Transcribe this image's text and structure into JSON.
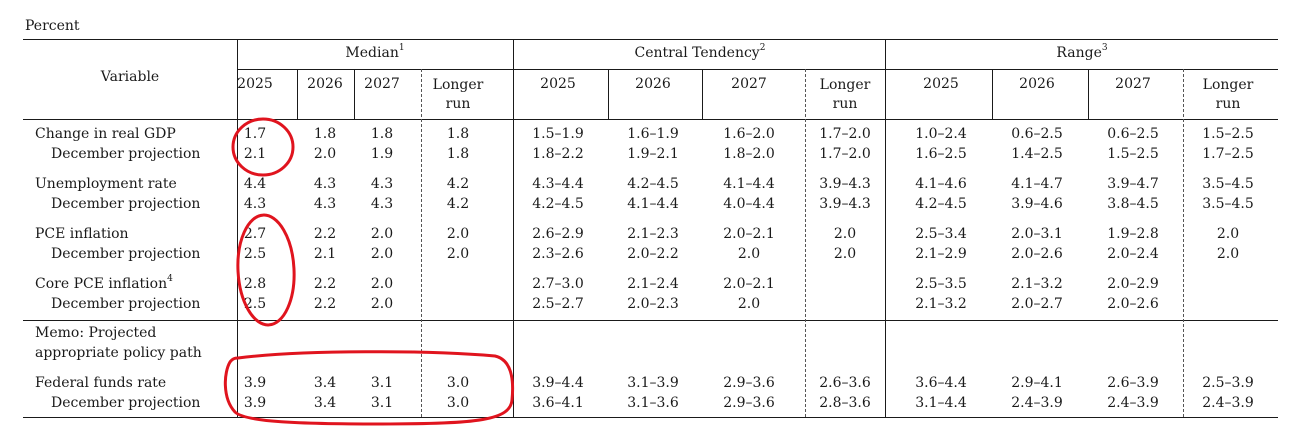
{
  "unit_label": "Percent",
  "variable_header": "Variable",
  "groups": [
    {
      "label": "Median",
      "note": "1"
    },
    {
      "label": "Central Tendency",
      "note": "2"
    },
    {
      "label": "Range",
      "note": "3"
    }
  ],
  "year_headers": [
    "2025",
    "2026",
    "2027",
    "Longer run"
  ],
  "rows": [
    {
      "label": "Change in real GDP",
      "note": "",
      "values": [
        "1.7",
        "1.8",
        "1.8",
        "1.8",
        "1.5–1.9",
        "1.6–1.9",
        "1.6–2.0",
        "1.7–2.0",
        "1.0–2.4",
        "0.6–2.5",
        "0.6–2.5",
        "1.5–2.5"
      ]
    },
    {
      "label": "December projection",
      "note": "",
      "values": [
        "2.1",
        "2.0",
        "1.9",
        "1.8",
        "1.8–2.2",
        "1.9–2.1",
        "1.8–2.0",
        "1.7–2.0",
        "1.6–2.5",
        "1.4–2.5",
        "1.5–2.5",
        "1.7–2.5"
      ]
    },
    {
      "label": "Unemployment rate",
      "note": "",
      "values": [
        "4.4",
        "4.3",
        "4.3",
        "4.2",
        "4.3–4.4",
        "4.2–4.5",
        "4.1–4.4",
        "3.9–4.3",
        "4.1–4.6",
        "4.1–4.7",
        "3.9–4.7",
        "3.5–4.5"
      ]
    },
    {
      "label": "December projection",
      "note": "",
      "values": [
        "4.3",
        "4.3",
        "4.3",
        "4.2",
        "4.2–4.5",
        "4.1–4.4",
        "4.0–4.4",
        "3.9–4.3",
        "4.2–4.5",
        "3.9–4.6",
        "3.8–4.5",
        "3.5–4.5"
      ]
    },
    {
      "label": "PCE inflation",
      "note": "",
      "values": [
        "2.7",
        "2.2",
        "2.0",
        "2.0",
        "2.6–2.9",
        "2.1–2.3",
        "2.0–2.1",
        "2.0",
        "2.5–3.4",
        "2.0–3.1",
        "1.9–2.8",
        "2.0"
      ]
    },
    {
      "label": "December projection",
      "note": "",
      "values": [
        "2.5",
        "2.1",
        "2.0",
        "2.0",
        "2.3–2.6",
        "2.0–2.2",
        "2.0",
        "2.0",
        "2.1–2.9",
        "2.0–2.6",
        "2.0–2.4",
        "2.0"
      ]
    },
    {
      "label": "Core PCE inflation",
      "note": "4",
      "values": [
        "2.8",
        "2.2",
        "2.0",
        "",
        "2.7–3.0",
        "2.1–2.4",
        "2.0–2.1",
        "",
        "2.5–3.5",
        "2.1–3.2",
        "2.0–2.9",
        ""
      ]
    },
    {
      "label": "December projection",
      "note": "",
      "values": [
        "2.5",
        "2.2",
        "2.0",
        "",
        "2.5–2.7",
        "2.0–2.3",
        "2.0",
        "",
        "2.1–3.2",
        "2.0–2.7",
        "2.0–2.6",
        ""
      ]
    },
    {
      "label": "Federal funds rate",
      "note": "",
      "values": [
        "3.9",
        "3.4",
        "3.1",
        "3.0",
        "3.9–4.4",
        "3.1–3.9",
        "2.9–3.6",
        "2.6–3.6",
        "3.6–4.4",
        "2.9–4.1",
        "2.6–3.9",
        "2.5–3.9"
      ]
    },
    {
      "label": "December projection",
      "note": "",
      "values": [
        "3.9",
        "3.4",
        "3.1",
        "3.0",
        "3.6–4.1",
        "3.1–3.6",
        "2.9–3.6",
        "2.8–3.6",
        "3.1–4.4",
        "2.4–3.9",
        "2.4–3.9",
        "2.4–3.9"
      ]
    }
  ],
  "memo_lines": [
    "Memo: Projected",
    "appropriate policy path"
  ],
  "annotation_color": "#e0141e"
}
